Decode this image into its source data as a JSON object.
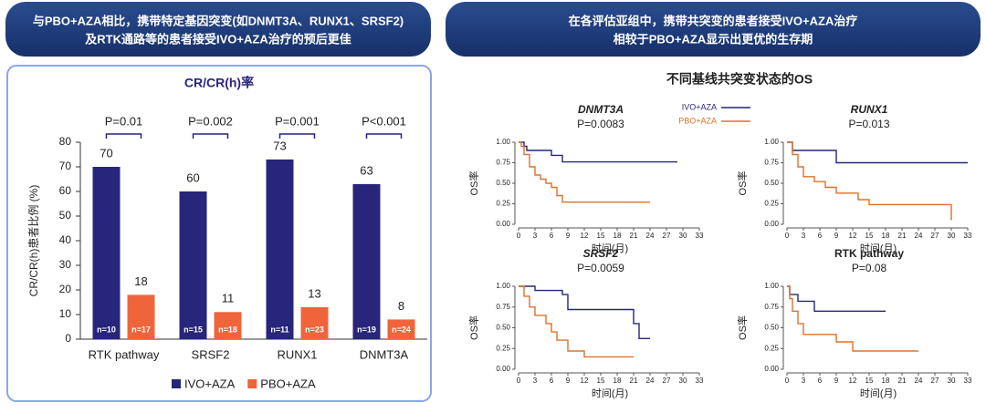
{
  "header": {
    "left": [
      "与PBO+AZA相比，携带特定基因突变(如DNMT3A、RUNX1、SRSF2)",
      "及RTK通路等的患者接受IVO+AZA治疗的预后更佳"
    ],
    "right": [
      "在各评估亚组中，携带共突变的患者接受IVO+AZA治疗",
      "相较于PBO+AZA显示出更优的生存期"
    ]
  },
  "os_title": "不同基线共突变状态的OS",
  "chart_data": [
    {
      "type": "bar",
      "title": "CR/CR(h)率",
      "ylabel": "CR/CR(h)患者比例 (%)",
      "categories": [
        "RTK pathway",
        "SRSF2",
        "RUNX1",
        "DNMT3A"
      ],
      "series": [
        {
          "name": "IVO+AZA",
          "color": "#27267a",
          "values": [
            70,
            60,
            73,
            63
          ],
          "n": [
            "n=10",
            "n=15",
            "n=11",
            "n=19"
          ]
        },
        {
          "name": "PBO+AZA",
          "color": "#f0643c",
          "values": [
            18,
            11,
            13,
            8
          ],
          "n": [
            "n=17",
            "n=18",
            "n=23",
            "n=24"
          ]
        }
      ],
      "p_values": [
        "P=0.01",
        "P=0.002",
        "P=0.001",
        "P<0.001"
      ],
      "ylim": [
        0,
        80
      ],
      "yticks": [
        0,
        10,
        20,
        30,
        40,
        50,
        60,
        70,
        80
      ]
    },
    {
      "type": "line",
      "title": "DNMT3A",
      "subtitle": "P=0.0083",
      "xlabel": "时间(月)",
      "ylabel": "OS率",
      "xlim": [
        0,
        35
      ],
      "ylim": [
        0,
        1
      ],
      "xticks": [
        0,
        3,
        6,
        9,
        12,
        15,
        18,
        21,
        24,
        27,
        30,
        33
      ],
      "yticks": [
        {
          "value": 0,
          "label": "0.00"
        },
        {
          "value": 0.25,
          "label": "0.25"
        },
        {
          "value": 0.5,
          "label": "0.50"
        },
        {
          "value": 0.75,
          "label": "0.75"
        },
        {
          "value": 1,
          "label": "1.00"
        }
      ],
      "series": [
        {
          "name": "IVO+AZA",
          "color": "#27267a",
          "x": [
            0,
            1,
            1,
            1.5,
            1.5,
            6,
            6,
            8,
            8,
            29
          ],
          "values": [
            1,
            1,
            0.95,
            0.95,
            0.9,
            0.9,
            0.84,
            0.84,
            0.76,
            0.76
          ]
        },
        {
          "name": "PBO+AZA",
          "color": "#e0702a",
          "x": [
            0,
            0.5,
            0.5,
            1,
            1,
            2,
            2,
            3,
            3,
            4,
            4,
            5,
            5,
            6,
            6,
            7,
            7,
            8,
            8,
            24
          ],
          "values": [
            1,
            1,
            0.95,
            0.95,
            0.85,
            0.85,
            0.7,
            0.7,
            0.6,
            0.6,
            0.55,
            0.55,
            0.5,
            0.5,
            0.45,
            0.45,
            0.35,
            0.35,
            0.27,
            0.27
          ]
        }
      ]
    },
    {
      "type": "line",
      "title": "RUNX1",
      "subtitle": "P=0.013",
      "xlabel": "时间(月)",
      "ylabel": "OS率",
      "xlim": [
        0,
        35
      ],
      "ylim": [
        0,
        1
      ],
      "xticks": [
        0,
        3,
        6,
        9,
        12,
        15,
        18,
        21,
        24,
        27,
        30,
        33
      ],
      "yticks": [
        {
          "value": 0,
          "label": "0.00"
        },
        {
          "value": 0.25,
          "label": "0.25"
        },
        {
          "value": 0.5,
          "label": "0.50"
        },
        {
          "value": 0.75,
          "label": "0.75"
        },
        {
          "value": 1,
          "label": "1.00"
        }
      ],
      "series": [
        {
          "color": "#27267a",
          "x": [
            0,
            1,
            1,
            9,
            9,
            33
          ],
          "values": [
            1,
            1,
            0.9,
            0.9,
            0.75,
            0.75
          ]
        },
        {
          "color": "#e0702a",
          "x": [
            0,
            1,
            1,
            2,
            2,
            3,
            3,
            5,
            5,
            7,
            7,
            9,
            9,
            13,
            13,
            15,
            15,
            30,
            30
          ],
          "values": [
            1,
            1,
            0.85,
            0.85,
            0.7,
            0.7,
            0.58,
            0.58,
            0.52,
            0.52,
            0.45,
            0.45,
            0.38,
            0.38,
            0.3,
            0.3,
            0.24,
            0.24,
            0.05
          ]
        }
      ]
    },
    {
      "type": "line",
      "title": "SRSF2",
      "subtitle": "P=0.0059",
      "xlabel": "时间(月)",
      "ylabel": "OS率",
      "xlim": [
        0,
        35
      ],
      "ylim": [
        0,
        1
      ],
      "xticks": [
        0,
        3,
        6,
        9,
        12,
        15,
        18,
        21,
        24,
        27,
        30,
        33
      ],
      "yticks": [
        {
          "value": 0,
          "label": "0.00"
        },
        {
          "value": 0.25,
          "label": "0.25"
        },
        {
          "value": 0.5,
          "label": "0.50"
        },
        {
          "value": 0.75,
          "label": "0.75"
        },
        {
          "value": 1,
          "label": "1.00"
        }
      ],
      "series": [
        {
          "color": "#27267a",
          "x": [
            0,
            3,
            3,
            8,
            8,
            9,
            9,
            21,
            21,
            22,
            22,
            24
          ],
          "values": [
            1,
            1,
            0.95,
            0.95,
            0.9,
            0.9,
            0.72,
            0.72,
            0.55,
            0.55,
            0.37,
            0.37
          ]
        },
        {
          "color": "#e0702a",
          "x": [
            0,
            1,
            1,
            2,
            2,
            3,
            3,
            5,
            5,
            6,
            6,
            7,
            7,
            9,
            9,
            12,
            12,
            21
          ],
          "values": [
            1,
            1,
            0.88,
            0.88,
            0.75,
            0.75,
            0.65,
            0.65,
            0.55,
            0.55,
            0.45,
            0.45,
            0.35,
            0.35,
            0.22,
            0.22,
            0.15,
            0.15
          ]
        }
      ]
    },
    {
      "type": "line",
      "title": "RTK pathway",
      "subtitle": "P=0.08",
      "xlabel": "时间(月)",
      "ylabel": "OS率",
      "xlim": [
        0,
        35
      ],
      "ylim": [
        0,
        1
      ],
      "xticks": [
        0,
        3,
        6,
        9,
        12,
        15,
        18,
        21,
        24,
        27,
        30,
        33
      ],
      "yticks": [
        {
          "value": 0,
          "label": "0.00"
        },
        {
          "value": 0.25,
          "label": "0.25"
        },
        {
          "value": 0.5,
          "label": "0.50"
        },
        {
          "value": 0.75,
          "label": "0.75"
        },
        {
          "value": 1,
          "label": "1.00"
        }
      ],
      "series": [
        {
          "color": "#27267a",
          "x": [
            0,
            0.5,
            0.5,
            2,
            2,
            5,
            5,
            18
          ],
          "values": [
            1,
            1,
            0.9,
            0.9,
            0.82,
            0.82,
            0.7,
            0.7
          ]
        },
        {
          "color": "#e0702a",
          "x": [
            0,
            0.5,
            0.5,
            1,
            1,
            2,
            2,
            3,
            3,
            9,
            9,
            12,
            12,
            24
          ],
          "values": [
            1,
            1,
            0.85,
            0.85,
            0.7,
            0.7,
            0.55,
            0.55,
            0.42,
            0.42,
            0.33,
            0.33,
            0.22,
            0.22
          ]
        }
      ]
    }
  ]
}
